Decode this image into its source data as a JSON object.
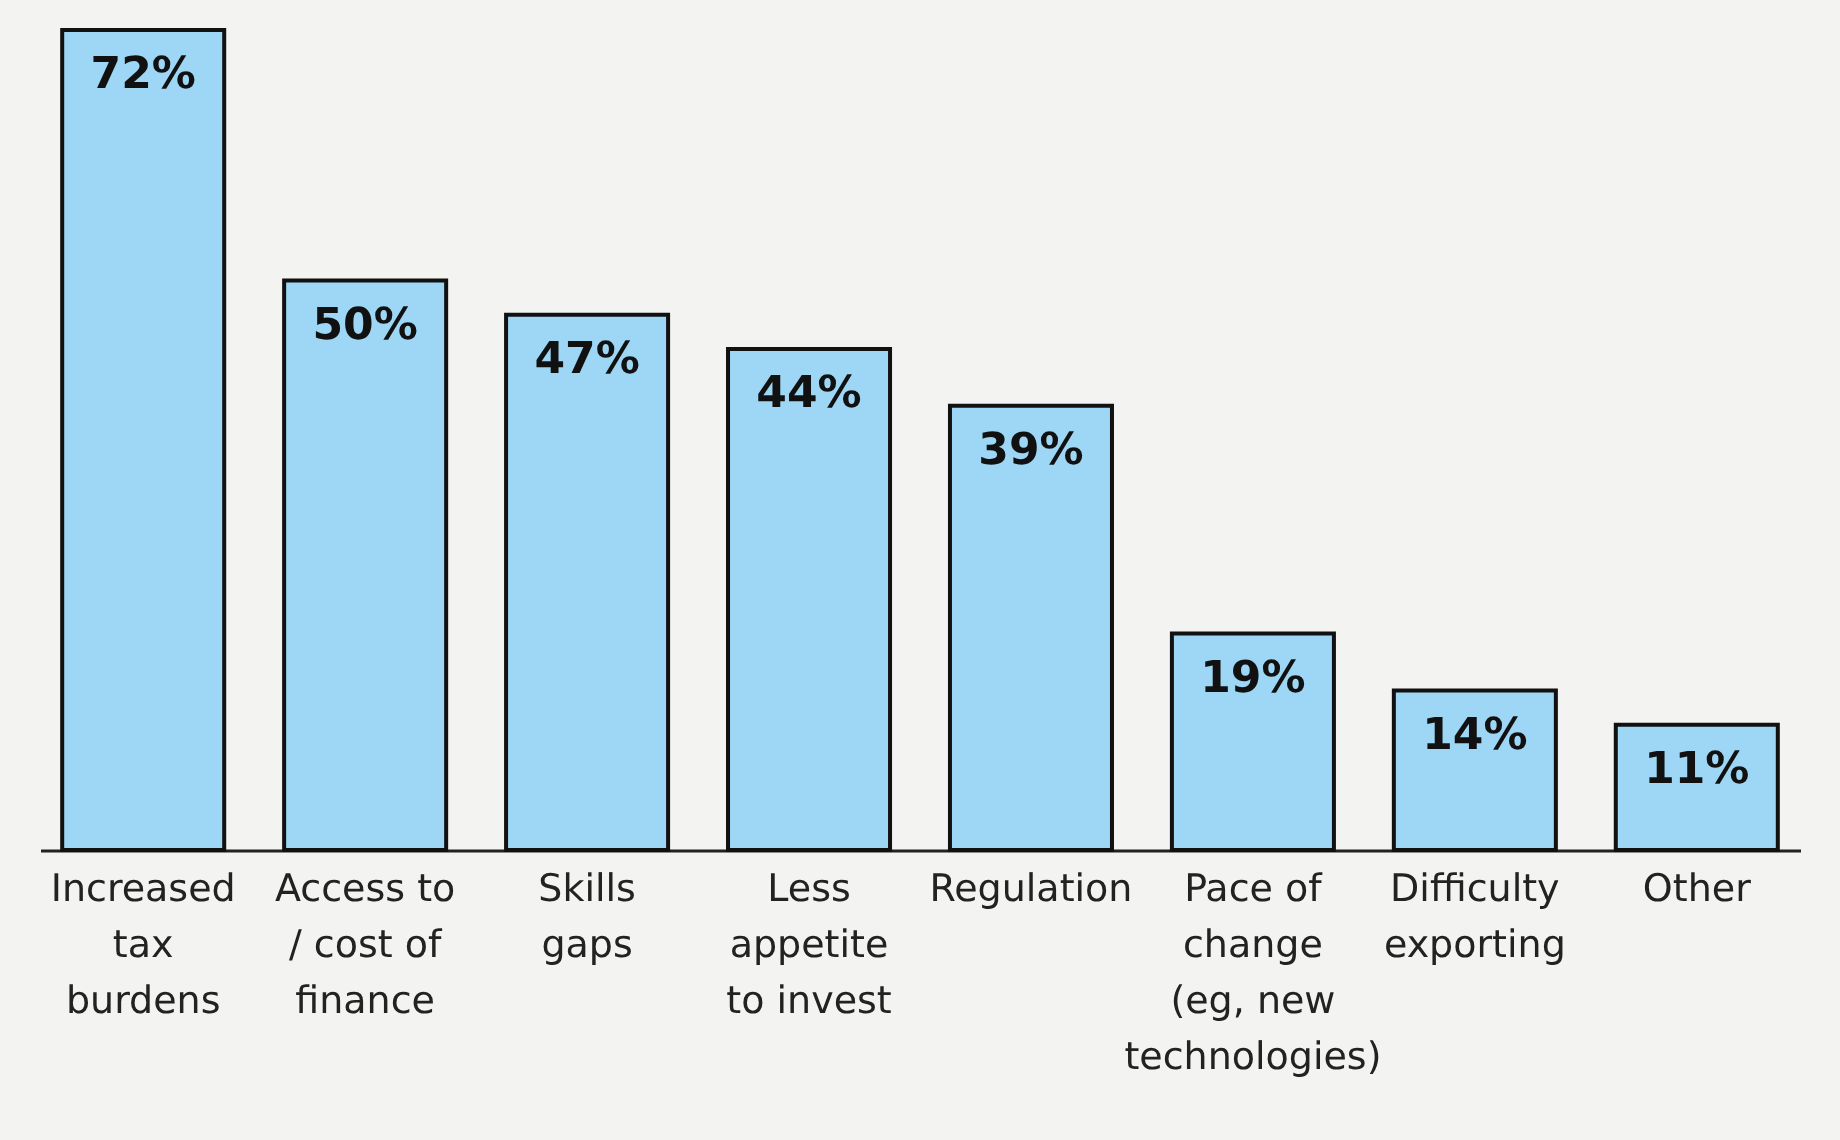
{
  "chart_data": {
    "type": "bar",
    "categories": [
      "Increased tax burdens",
      "Access to / cost of finance",
      "Skills gaps",
      "Less appetite to invest",
      "Regulation",
      "Pace of change (eg, new technologies)",
      "Difficulty exporting",
      "Other"
    ],
    "values": [
      72,
      50,
      47,
      44,
      39,
      19,
      14,
      11
    ],
    "color": "#9dd7f5",
    "value_labels": [
      "72%",
      "50%",
      "47%",
      "44%",
      "39%",
      "19%",
      "14%",
      "11%"
    ]
  }
}
